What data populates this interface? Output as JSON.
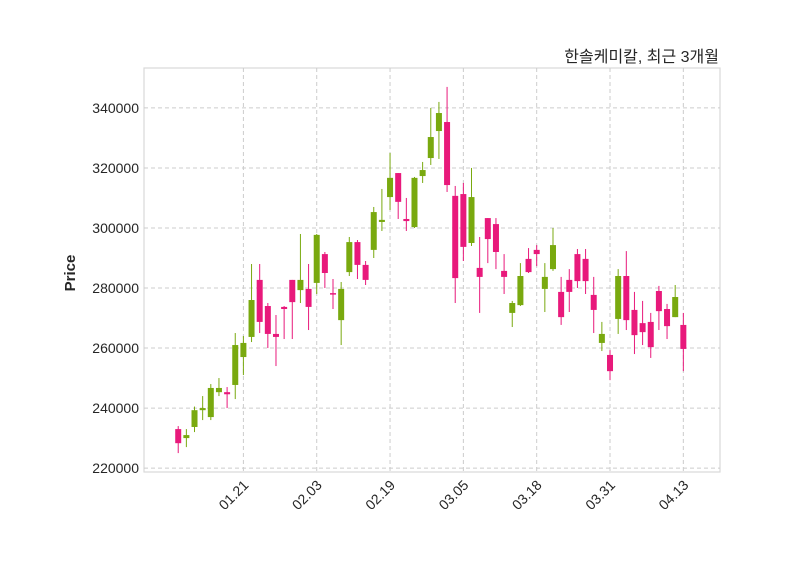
{
  "chart_data": {
    "type": "candlestick",
    "title": "한솔케미칼, 최근 3개월",
    "xlabel": "",
    "ylabel": "Price",
    "ylim": [
      218700,
      353300
    ],
    "xlim": [
      -4.2,
      66.5
    ],
    "grid": true,
    "colors": {
      "up": "#79a90f",
      "down": "#e8197b"
    },
    "yticks": [
      220000,
      240000,
      260000,
      280000,
      300000,
      320000,
      340000
    ],
    "xticks": [
      {
        "index": 8,
        "label": "01.21"
      },
      {
        "index": 17,
        "label": "02.03"
      },
      {
        "index": 26,
        "label": "02.19"
      },
      {
        "index": 35,
        "label": "03.05"
      },
      {
        "index": 44,
        "label": "03.18"
      },
      {
        "index": 53,
        "label": "03.31"
      },
      {
        "index": 62,
        "label": "04.13"
      }
    ],
    "ohlc": [
      [
        233000,
        234000,
        225000,
        228300
      ],
      [
        230000,
        233000,
        227000,
        231000
      ],
      [
        233700,
        240500,
        232000,
        239300
      ],
      [
        239300,
        244000,
        236000,
        240000
      ],
      [
        237000,
        248000,
        236000,
        246700
      ],
      [
        245300,
        250000,
        244000,
        246700
      ],
      [
        245300,
        247000,
        240000,
        244600
      ],
      [
        247700,
        265000,
        243000,
        261000
      ],
      [
        257000,
        264000,
        251000,
        261700
      ],
      [
        263700,
        288000,
        262000,
        276000
      ],
      [
        282700,
        288000,
        265000,
        268700
      ],
      [
        274000,
        275000,
        260000,
        264700
      ],
      [
        264700,
        271000,
        254000,
        263700
      ],
      [
        273700,
        274000,
        263000,
        273000
      ],
      [
        282700,
        282700,
        263000,
        275300
      ],
      [
        279300,
        298000,
        275000,
        282700
      ],
      [
        279700,
        288000,
        266000,
        273700
      ],
      [
        281700,
        298000,
        278000,
        297700
      ],
      [
        291300,
        292000,
        280000,
        285000
      ],
      [
        278300,
        283000,
        273000,
        278000
      ],
      [
        269300,
        282000,
        261000,
        279700
      ],
      [
        285300,
        297000,
        284000,
        295300
      ],
      [
        295300,
        296000,
        283000,
        287700
      ],
      [
        287700,
        289000,
        281000,
        282700
      ],
      [
        292700,
        307000,
        290000,
        305300
      ],
      [
        302000,
        313000,
        299000,
        302700
      ],
      [
        310300,
        325000,
        306000,
        316700
      ],
      [
        318300,
        318300,
        303000,
        308700
      ],
      [
        303000,
        310000,
        299000,
        302300
      ],
      [
        300300,
        317000,
        300000,
        316700
      ],
      [
        317300,
        322000,
        315000,
        319300
      ],
      [
        323300,
        340000,
        321000,
        330300
      ],
      [
        332300,
        342000,
        323000,
        338300
      ],
      [
        335300,
        347000,
        312000,
        314300
      ],
      [
        310700,
        314000,
        275000,
        283300
      ],
      [
        311300,
        315000,
        289000,
        293700
      ],
      [
        295000,
        320000,
        294000,
        310300
      ],
      [
        286700,
        297000,
        271700,
        283700
      ],
      [
        303300,
        303300,
        288300,
        296300
      ],
      [
        301300,
        303300,
        286300,
        292000
      ],
      [
        285700,
        291300,
        278000,
        283700
      ],
      [
        271700,
        275700,
        267000,
        275000
      ],
      [
        274300,
        288300,
        274000,
        284000
      ],
      [
        289700,
        293300,
        285000,
        285300
      ],
      [
        292700,
        294300,
        287300,
        291300
      ],
      [
        279700,
        288300,
        272000,
        283700
      ],
      [
        286300,
        300000,
        285700,
        294300
      ],
      [
        278700,
        283700,
        267700,
        270300
      ],
      [
        282700,
        286300,
        272000,
        278700
      ],
      [
        291300,
        293000,
        280000,
        282300
      ],
      [
        289700,
        293000,
        278000,
        282300
      ],
      [
        277700,
        283700,
        265000,
        272700
      ],
      [
        261700,
        268700,
        259000,
        264700
      ],
      [
        257700,
        259300,
        249300,
        252300
      ],
      [
        269700,
        286300,
        264700,
        284000
      ],
      [
        284000,
        292300,
        266000,
        269300
      ],
      [
        272700,
        278700,
        258000,
        264300
      ],
      [
        268300,
        275700,
        261000,
        265300
      ],
      [
        268700,
        271700,
        256700,
        260300
      ],
      [
        279000,
        280700,
        266000,
        272300
      ],
      [
        273000,
        274700,
        263000,
        267300
      ],
      [
        270300,
        281000,
        270300,
        277000
      ],
      [
        267700,
        271700,
        252300,
        259700
      ]
    ]
  }
}
